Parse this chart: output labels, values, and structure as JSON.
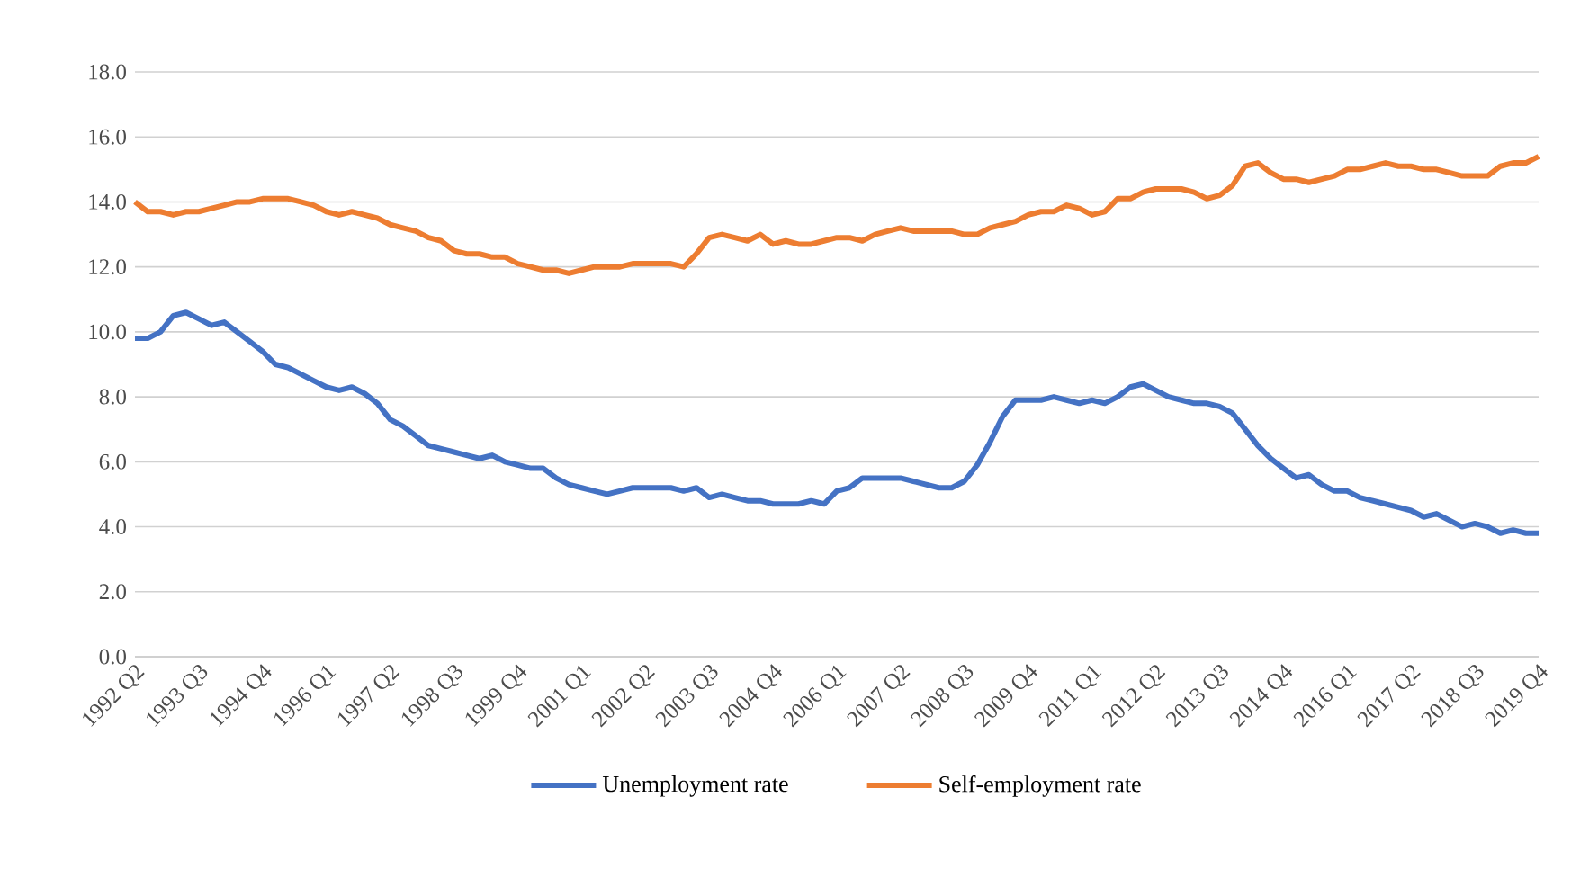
{
  "chart_data": {
    "type": "line",
    "categories": [
      "1992 Q2",
      null,
      null,
      null,
      null,
      "1993 Q3",
      null,
      null,
      null,
      null,
      "1994 Q4",
      null,
      null,
      null,
      null,
      "1996 Q1",
      null,
      null,
      null,
      null,
      "1997 Q2",
      null,
      null,
      null,
      null,
      "1998 Q3",
      null,
      null,
      null,
      null,
      "1999 Q4",
      null,
      null,
      null,
      null,
      "2001 Q1",
      null,
      null,
      null,
      null,
      "2002 Q2",
      null,
      null,
      null,
      null,
      "2003 Q3",
      null,
      null,
      null,
      null,
      "2004 Q4",
      null,
      null,
      null,
      null,
      "2006 Q1",
      null,
      null,
      null,
      null,
      "2007 Q2",
      null,
      null,
      null,
      null,
      "2008 Q3",
      null,
      null,
      null,
      null,
      "2009 Q4",
      null,
      null,
      null,
      null,
      "2011 Q1",
      null,
      null,
      null,
      null,
      "2012 Q2",
      null,
      null,
      null,
      null,
      "2013 Q3",
      null,
      null,
      null,
      null,
      "2014 Q4",
      null,
      null,
      null,
      null,
      "2016 Q1",
      null,
      null,
      null,
      null,
      "2017 Q2",
      null,
      null,
      null,
      null,
      "2018 Q3",
      null,
      null,
      null,
      null,
      "2019 Q4"
    ],
    "series": [
      {
        "name": "Unemployment rate",
        "color": "#4472c4",
        "values": [
          9.8,
          9.8,
          10.0,
          10.5,
          10.6,
          10.4,
          10.2,
          10.3,
          10.0,
          9.7,
          9.4,
          9.0,
          8.9,
          8.7,
          8.5,
          8.3,
          8.2,
          8.3,
          8.1,
          7.8,
          7.3,
          7.1,
          6.8,
          6.5,
          6.4,
          6.3,
          6.2,
          6.1,
          6.2,
          6.0,
          5.9,
          5.8,
          5.8,
          5.5,
          5.3,
          5.2,
          5.1,
          5.0,
          5.1,
          5.2,
          5.2,
          5.2,
          5.2,
          5.1,
          5.2,
          4.9,
          5.0,
          4.9,
          4.8,
          4.8,
          4.7,
          4.7,
          4.7,
          4.8,
          4.7,
          5.1,
          5.2,
          5.5,
          5.5,
          5.5,
          5.5,
          5.4,
          5.3,
          5.2,
          5.2,
          5.4,
          5.9,
          6.6,
          7.4,
          7.9,
          7.9,
          7.9,
          8.0,
          7.9,
          7.8,
          7.9,
          7.8,
          8.0,
          8.3,
          8.4,
          8.2,
          8.0,
          7.9,
          7.8,
          7.8,
          7.7,
          7.5,
          7.0,
          6.5,
          6.1,
          5.8,
          5.5,
          5.6,
          5.3,
          5.1,
          5.1,
          4.9,
          4.8,
          4.7,
          4.6,
          4.5,
          4.3,
          4.4,
          4.2,
          4.0,
          4.1,
          4.0,
          3.8,
          3.9,
          3.8,
          3.8
        ]
      },
      {
        "name": "Self-employment rate",
        "color": "#ed7d31",
        "values": [
          14.0,
          13.7,
          13.7,
          13.6,
          13.7,
          13.7,
          13.8,
          13.9,
          14.0,
          14.0,
          14.1,
          14.1,
          14.1,
          14.0,
          13.9,
          13.7,
          13.6,
          13.7,
          13.6,
          13.5,
          13.3,
          13.2,
          13.1,
          12.9,
          12.8,
          12.5,
          12.4,
          12.4,
          12.3,
          12.3,
          12.1,
          12.0,
          11.9,
          11.9,
          11.8,
          11.9,
          12.0,
          12.0,
          12.0,
          12.1,
          12.1,
          12.1,
          12.1,
          12.0,
          12.4,
          12.9,
          13.0,
          12.9,
          12.8,
          13.0,
          12.7,
          12.8,
          12.7,
          12.7,
          12.8,
          12.9,
          12.9,
          12.8,
          13.0,
          13.1,
          13.2,
          13.1,
          13.1,
          13.1,
          13.1,
          13.0,
          13.0,
          13.2,
          13.3,
          13.4,
          13.6,
          13.7,
          13.7,
          13.9,
          13.8,
          13.6,
          13.7,
          14.1,
          14.1,
          14.3,
          14.4,
          14.4,
          14.4,
          14.3,
          14.1,
          14.2,
          14.5,
          15.1,
          15.2,
          14.9,
          14.7,
          14.7,
          14.6,
          14.7,
          14.8,
          15.0,
          15.0,
          15.1,
          15.2,
          15.1,
          15.1,
          15.0,
          15.0,
          14.9,
          14.8,
          14.8,
          14.8,
          15.1,
          15.2,
          15.2,
          15.4
        ]
      }
    ],
    "ylim": [
      0,
      18
    ],
    "yticks": [
      {
        "value": 0,
        "label": "0.0"
      },
      {
        "value": 2,
        "label": "2.0"
      },
      {
        "value": 4,
        "label": "4.0"
      },
      {
        "value": 6,
        "label": "6.0"
      },
      {
        "value": 8,
        "label": "8.0"
      },
      {
        "value": 10,
        "label": "10.0"
      },
      {
        "value": 12,
        "label": "12.0"
      },
      {
        "value": 14,
        "label": "14.0"
      },
      {
        "value": 16,
        "label": "16.0"
      },
      {
        "value": 18,
        "label": "18.0"
      }
    ],
    "grid": "y",
    "legend": "bottom",
    "marker": "none",
    "line_style": "solid"
  }
}
